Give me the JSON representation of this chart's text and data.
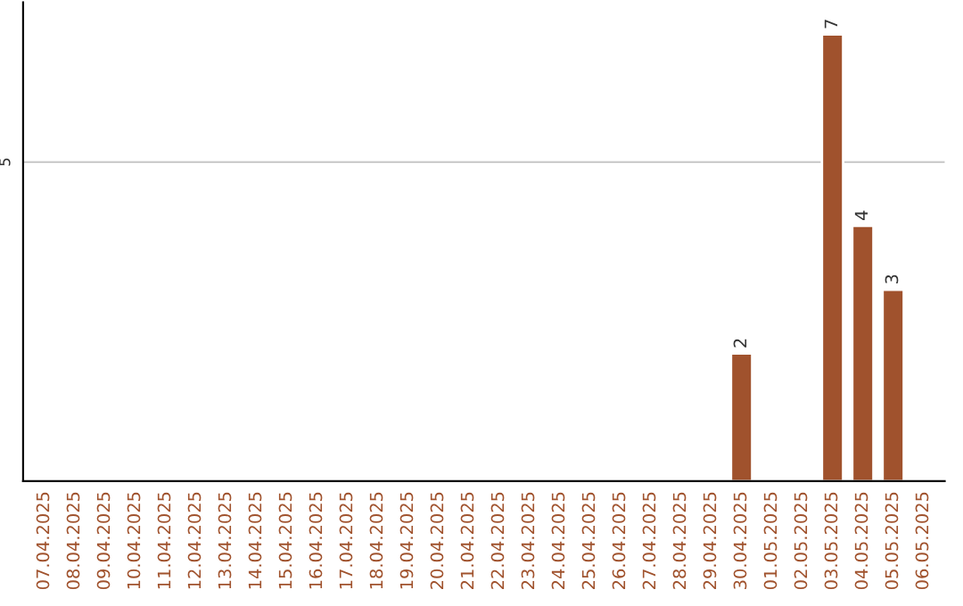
{
  "chart_data": {
    "type": "bar",
    "categories": [
      "07.04.2025",
      "08.04.2025",
      "09.04.2025",
      "10.04.2025",
      "11.04.2025",
      "12.04.2025",
      "13.04.2025",
      "14.04.2025",
      "15.04.2025",
      "16.04.2025",
      "17.04.2025",
      "18.04.2025",
      "19.04.2025",
      "20.04.2025",
      "21.04.2025",
      "22.04.2025",
      "23.04.2025",
      "24.04.2025",
      "25.04.2025",
      "26.04.2025",
      "27.04.2025",
      "28.04.2025",
      "29.04.2025",
      "30.04.2025",
      "01.05.2025",
      "02.05.2025",
      "03.05.2025",
      "04.05.2025",
      "05.05.2025",
      "06.05.2025"
    ],
    "values": [
      null,
      null,
      null,
      null,
      null,
      null,
      null,
      null,
      null,
      null,
      null,
      null,
      null,
      null,
      null,
      null,
      null,
      null,
      null,
      null,
      null,
      null,
      null,
      2,
      null,
      null,
      7,
      4,
      3,
      null
    ],
    "color": "#a0522d",
    "ylim": [
      0,
      7.5
    ],
    "yticks": [
      5
    ],
    "grid": "y",
    "data_labels": true
  }
}
